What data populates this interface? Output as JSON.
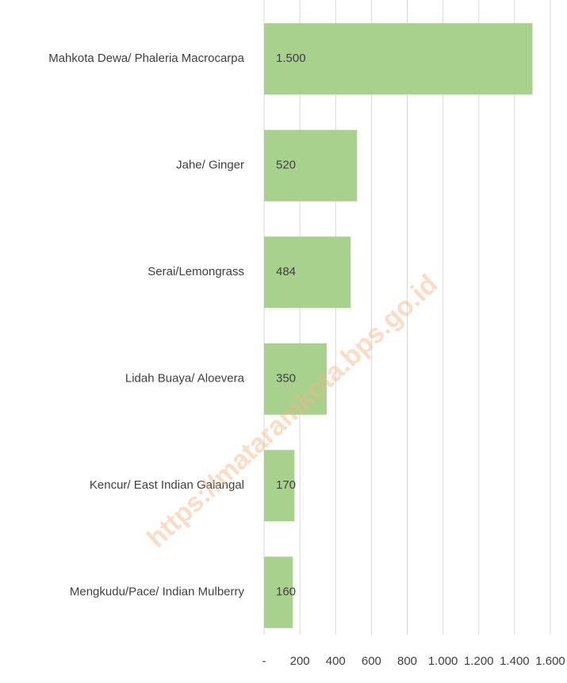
{
  "chart_data": {
    "type": "bar",
    "orientation": "horizontal",
    "categories": [
      "Mahkota Dewa/ Phaleria Macrocarpa",
      "Jahe/ Ginger",
      "Serai/Lemongrass",
      "Lidah Buaya/ Aloevera",
      "Kencur/ East Indian Galangal",
      "Mengkudu/Pace/ Indian Mulberry"
    ],
    "values": [
      1500,
      520,
      484,
      350,
      170,
      160
    ],
    "value_labels": [
      "1.500",
      "520",
      "484",
      "350",
      "170",
      "160"
    ],
    "color": "#a9d18e",
    "xlim": [
      0,
      1600
    ],
    "xticks": [
      {
        "value": 0,
        "label": "-"
      },
      200,
      400,
      600,
      800,
      {
        "value": 1000,
        "label": "1.000"
      },
      {
        "value": 1200,
        "label": "1.200"
      },
      {
        "value": 1400,
        "label": "1.400"
      },
      {
        "value": 1600,
        "label": "1.600"
      }
    ],
    "grid": true,
    "watermark": "https://mataramkota.bps.go.id"
  }
}
